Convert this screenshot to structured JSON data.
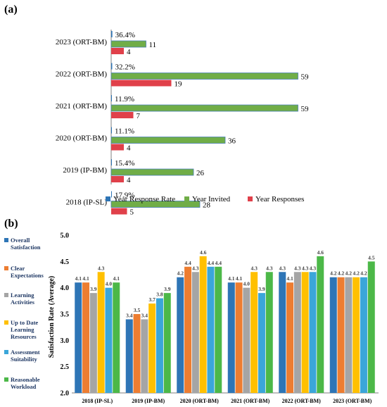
{
  "chart_data": [
    {
      "panel_label": "(a)",
      "type": "bar",
      "orientation": "horizontal",
      "categories": [
        "2023 (ORT-BM)",
        "2022 (ORT-BM)",
        "2021 (ORT-BM)",
        "2020 (ORT-BM)",
        "2019 (IP-BM)",
        "2018 (IP-SL)"
      ],
      "series": [
        {
          "name": "Year Response Rate",
          "color": "#2e75b6",
          "values": [
            0.364,
            0.322,
            0.119,
            0.111,
            0.154,
            0.179
          ],
          "labels": [
            "36.4%",
            "32.2%",
            "11.9%",
            "11.1%",
            "15.4%",
            "17.9%"
          ]
        },
        {
          "name": "Year Invited",
          "color": "#70ad47",
          "values": [
            11,
            59,
            59,
            36,
            26,
            28
          ],
          "labels": [
            "11",
            "59",
            "59",
            "36",
            "26",
            "28"
          ]
        },
        {
          "name": "Year Responses",
          "color": "#e0404a",
          "values": [
            4,
            19,
            7,
            4,
            4,
            5
          ],
          "labels": [
            "4",
            "19",
            "7",
            "4",
            "4",
            "5"
          ]
        }
      ],
      "xlim": [
        0,
        60
      ],
      "legend_position": "bottom",
      "grid": false
    },
    {
      "panel_label": "(b)",
      "type": "bar",
      "orientation": "vertical",
      "categories": [
        "2018 (IP-SL)",
        "2019 (IP-BM)",
        "2020 (ORT-BM)",
        "2021 (ORT-BM)",
        "2022 (ORT-BM)",
        "2023 (ORT-BM)"
      ],
      "series": [
        {
          "name": "Overall Satisfaction",
          "color": "#2e75b6",
          "values": [
            4.1,
            3.4,
            4.2,
            4.1,
            4.3,
            4.2
          ]
        },
        {
          "name": "Clear Expectations",
          "color": "#ed7d31",
          "values": [
            4.1,
            3.5,
            4.4,
            4.1,
            4.1,
            4.2
          ]
        },
        {
          "name": "Learning Activities",
          "color": "#a5a5a5",
          "values": [
            3.9,
            3.4,
            4.3,
            4.0,
            4.3,
            4.2
          ]
        },
        {
          "name": "Up to Date Learning Resources",
          "color": "#ffc000",
          "values": [
            4.3,
            3.7,
            4.6,
            4.3,
            4.3,
            4.2
          ]
        },
        {
          "name": "Assessment Suitability",
          "color": "#3ba6d9",
          "values": [
            4.0,
            3.8,
            4.4,
            3.9,
            4.3,
            4.2
          ]
        },
        {
          "name": "Reasonable Workload",
          "color": "#4cb848",
          "values": [
            4.1,
            3.9,
            4.4,
            4.3,
            4.6,
            4.5
          ]
        }
      ],
      "ylabel": "Satisfaction Rate (Average)",
      "ylim": [
        2.0,
        5.0
      ],
      "yticks": [
        "2.0",
        "2.5",
        "3.0",
        "3.5",
        "4.0",
        "4.5",
        "5.0"
      ],
      "legend_position": "left",
      "grid": false
    }
  ]
}
